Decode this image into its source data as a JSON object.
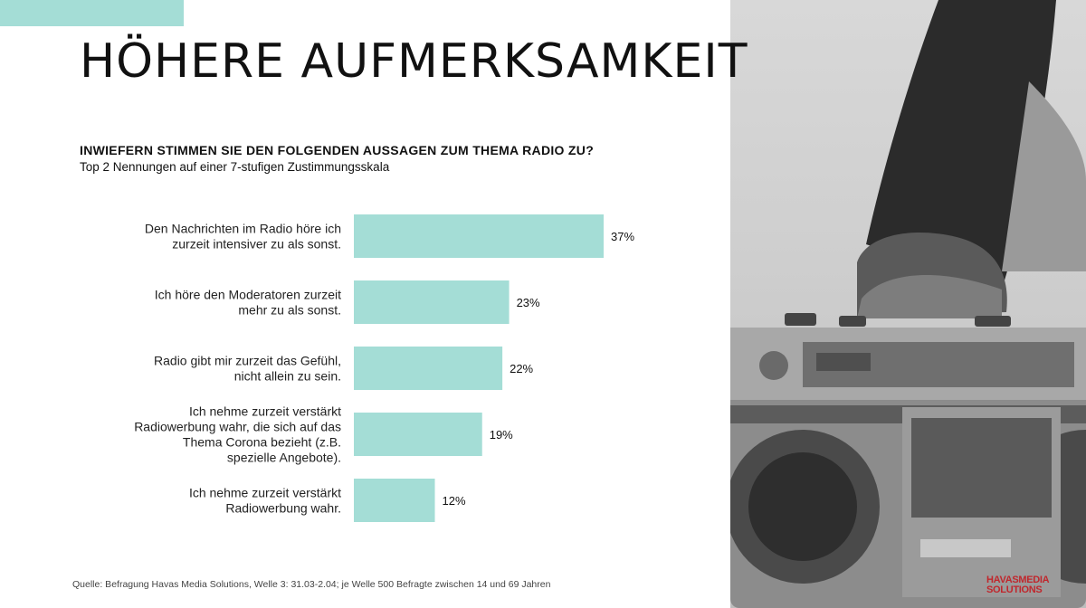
{
  "colors": {
    "accent": "#a4ddd6",
    "bar": "#a4ddd6",
    "text": "#1a1a1a",
    "logo": "#c0272d"
  },
  "title": "HÖHERE AUFMERKSAMKEIT",
  "question": "INWIEFERN STIMMEN SIE DEN FOLGENDEN AUSSAGEN ZUM THEMA RADIO ZU?",
  "subtitle": "Top 2 Nennungen auf einer 7-stufigen Zustimmungsskala",
  "source": "Quelle: Befragung Havas Media Solutions, Welle 3: 31.03-2.04; je Welle 500 Befragte zwischen 14 und 69 Jahren",
  "logo": {
    "line1": "HAVASMEDIA",
    "line2": "SOLUTIONS"
  },
  "chart_data": {
    "type": "bar",
    "orientation": "horizontal",
    "categories": [
      [
        "Den Nachrichten im Radio höre ich",
        "zurzeit intensiver zu als sonst."
      ],
      [
        "Ich höre den Moderatoren zurzeit",
        "mehr zu als sonst."
      ],
      [
        "Radio gibt mir zurzeit das Gefühl,",
        "nicht allein zu sein."
      ],
      [
        "Ich nehme zurzeit verstärkt",
        "Radiowerbung wahr, die sich auf das",
        "Thema Corona bezieht (z.B.",
        "spezielle Angebote)."
      ],
      [
        "Ich nehme zurzeit verstärkt",
        "Radiowerbung wahr."
      ]
    ],
    "values": [
      37,
      23,
      22,
      19,
      12
    ],
    "value_labels": [
      "37%",
      "23%",
      "22%",
      "19%",
      "12%"
    ],
    "unit": "%",
    "xlim": [
      0,
      100
    ],
    "grid": false,
    "legend": "none"
  }
}
